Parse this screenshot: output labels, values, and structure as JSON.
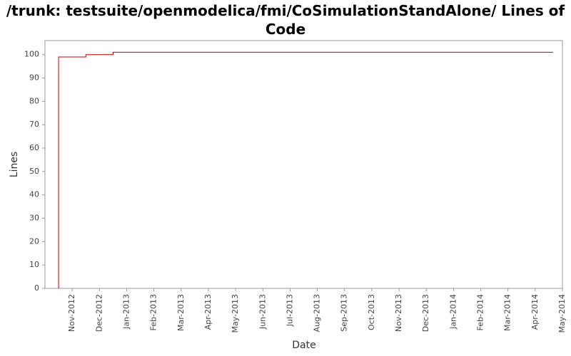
{
  "chart_data": {
    "type": "step",
    "title": "/trunk: testsuite/openmodelica/fmi/CoSimulationStandAlone/ Lines of Code",
    "x_label": "Date",
    "y_label": "Lines",
    "x": [
      "2012-10",
      "2012-10",
      "2012-11",
      "2012-12",
      "2014-04"
    ],
    "series": [
      {
        "name": "Lines",
        "color": "#c00000",
        "values": [
          0,
          99,
          100,
          101,
          101
        ]
      }
    ],
    "xlim": [
      "2012-10",
      "2014-05"
    ],
    "xticks": [
      {
        "value": "2012-11",
        "label": "Nov-2012"
      },
      {
        "value": "2012-12",
        "label": "Dec-2012"
      },
      {
        "value": "2013-01",
        "label": "Jan-2013"
      },
      {
        "value": "2013-02",
        "label": "Feb-2013"
      },
      {
        "value": "2013-03",
        "label": "Mar-2013"
      },
      {
        "value": "2013-04",
        "label": "Apr-2013"
      },
      {
        "value": "2013-05",
        "label": "May-2013"
      },
      {
        "value": "2013-06",
        "label": "Jun-2013"
      },
      {
        "value": "2013-07",
        "label": "Jul-2013"
      },
      {
        "value": "2013-08",
        "label": "Aug-2013"
      },
      {
        "value": "2013-09",
        "label": "Sep-2013"
      },
      {
        "value": "2013-10",
        "label": "Oct-2013"
      },
      {
        "value": "2013-11",
        "label": "Nov-2013"
      },
      {
        "value": "2013-12",
        "label": "Dec-2013"
      },
      {
        "value": "2014-01",
        "label": "Jan-2014"
      },
      {
        "value": "2014-02",
        "label": "Feb-2014"
      },
      {
        "value": "2014-03",
        "label": "Mar-2014"
      },
      {
        "value": "2014-04",
        "label": "Apr-2014"
      },
      {
        "value": "2014-05",
        "label": "May-2014"
      }
    ],
    "ylim": [
      0,
      106
    ],
    "yticks": [
      0,
      10,
      20,
      30,
      40,
      50,
      60,
      70,
      80,
      90,
      100
    ],
    "grid": false
  }
}
